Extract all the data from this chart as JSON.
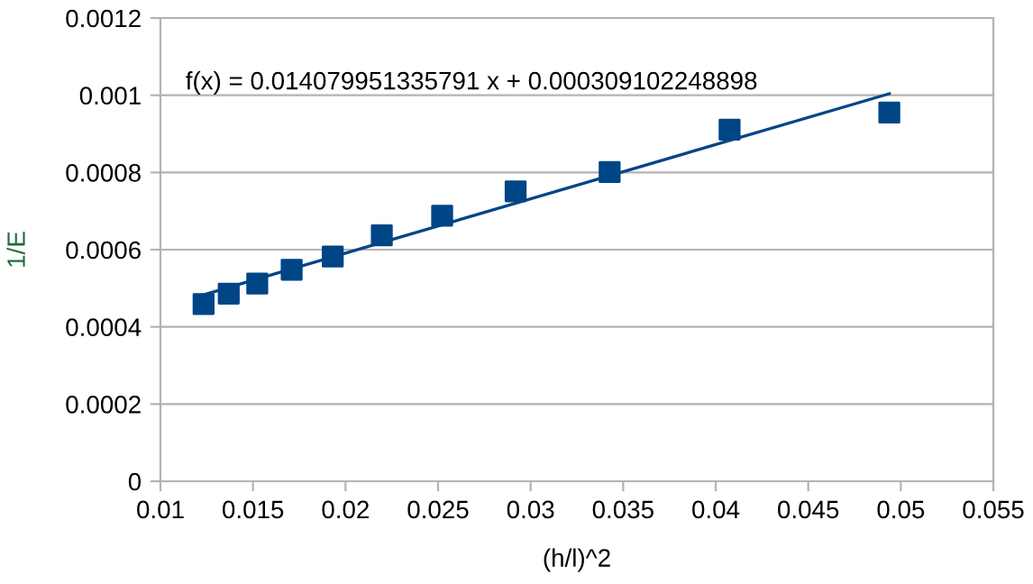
{
  "chart_data": {
    "type": "scatter",
    "xlabel": "(h/l)^2",
    "ylabel": "1/E",
    "marker": "square",
    "grid": "y",
    "legend": false,
    "annotations": [
      "f(x) = 0.014079951335791 x + 0.000309102248898"
    ],
    "xlim": [
      0.01,
      0.055
    ],
    "xticks": [
      0.01,
      0.015,
      0.02,
      0.025,
      0.03,
      0.035,
      0.04,
      0.045,
      0.05,
      0.055
    ],
    "ylim": [
      0,
      0.0012
    ],
    "yticks": [
      0,
      0.0002,
      0.0004,
      0.0006,
      0.0008,
      0.001,
      0.0012
    ],
    "series": [
      {
        "color": "#004586",
        "x": [
          0.01233,
          0.01369,
          0.01523,
          0.01709,
          0.01931,
          0.02196,
          0.02522,
          0.02919,
          0.03427,
          0.04075,
          0.04938
        ],
        "values": [
          0.000459,
          0.000486,
          0.000512,
          0.000548,
          0.000582,
          0.000637,
          0.000688,
          0.000751,
          0.000801,
          0.000911,
          0.000955
        ]
      },
      {
        "type": "line",
        "color": "#004586",
        "marker": "none",
        "x": [
          0.01233,
          0.04938
        ],
        "values": [
          0.000483,
          0.001004
        ]
      }
    ]
  }
}
